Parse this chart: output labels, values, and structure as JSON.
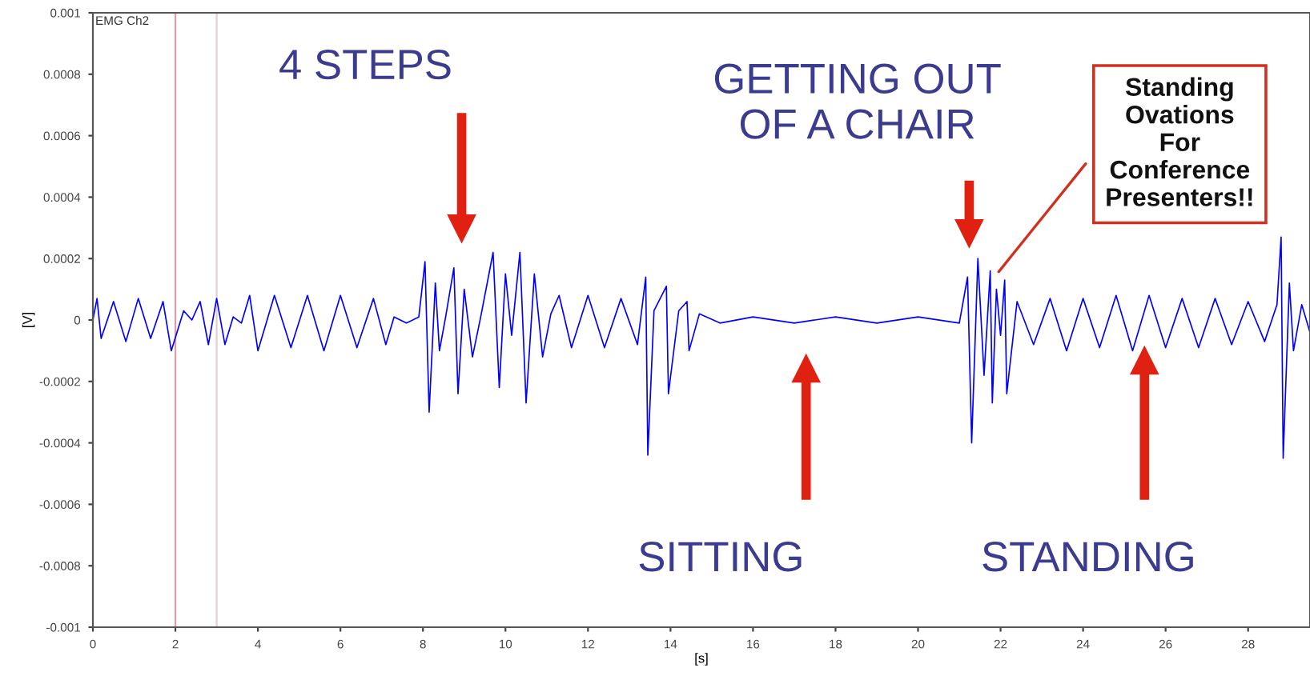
{
  "chart_data": {
    "type": "line",
    "xlabel": "[s]",
    "ylabel": "[V]",
    "xlim": [
      0,
      29.5
    ],
    "ylim": [
      -0.001,
      0.001
    ],
    "xticks": [
      0,
      2,
      4,
      6,
      8,
      10,
      12,
      14,
      16,
      18,
      20,
      22,
      24,
      26,
      28
    ],
    "yticks": [
      -0.001,
      -0.0008,
      -0.0006,
      -0.0004,
      -0.0002,
      0,
      0.0002,
      0.0004,
      0.0006,
      0.0008,
      0.001
    ],
    "grid": false,
    "marker": "none",
    "line_style": "solid",
    "ref_lines": [
      {
        "axis": "x",
        "value": 2,
        "color": "#d9a0a8"
      },
      {
        "axis": "x",
        "value": 3,
        "color": "#ddd0d0"
      }
    ],
    "annotations": [
      "EMG Ch2",
      "4 STEPS",
      "GETTING OUT\nOF A CHAIR",
      "SITTING",
      "STANDING",
      "Standing\nOvations\nFor\nConference\nPresenters!!"
    ],
    "series": [
      {
        "color": "#0000ff",
        "x": [
          0.0,
          0.1,
          0.2,
          0.5,
          0.8,
          1.1,
          1.4,
          1.7,
          1.9,
          2.2,
          2.4,
          2.6,
          2.8,
          3.0,
          3.2,
          3.4,
          3.6,
          3.8,
          4.0,
          4.4,
          4.8,
          5.2,
          5.6,
          6.0,
          6.4,
          6.8,
          7.1,
          7.3,
          7.6,
          7.9,
          8.05,
          8.15,
          8.3,
          8.4,
          8.55,
          8.75,
          8.85,
          9.0,
          9.2,
          9.4,
          9.7,
          9.85,
          10.0,
          10.15,
          10.35,
          10.5,
          10.7,
          10.9,
          11.1,
          11.3,
          11.6,
          12.0,
          12.4,
          12.8,
          13.2,
          13.4,
          13.45,
          13.6,
          13.9,
          13.95,
          14.2,
          14.4,
          14.45,
          14.7,
          15.2,
          16,
          17,
          18,
          19,
          20,
          21.0,
          21.2,
          21.3,
          21.45,
          21.6,
          21.75,
          21.8,
          21.9,
          22.0,
          22.1,
          22.15,
          22.4,
          22.8,
          23.2,
          23.6,
          24.0,
          24.4,
          24.8,
          25.2,
          25.6,
          26.0,
          26.4,
          26.8,
          27.2,
          27.6,
          28.0,
          28.4,
          28.7,
          28.8,
          28.85,
          29.0,
          29.1,
          29.3,
          29.5
        ],
        "values": [
          0,
          7e-05,
          -6e-05,
          6e-05,
          -7e-05,
          7e-05,
          -6e-05,
          6e-05,
          -0.0001,
          3e-05,
          0,
          6e-05,
          -8e-05,
          7e-05,
          -8e-05,
          1e-05,
          -1e-05,
          8e-05,
          -0.0001,
          8e-05,
          -9e-05,
          8e-05,
          -0.0001,
          8e-05,
          -9e-05,
          7e-05,
          -8e-05,
          1e-05,
          -1e-05,
          1e-05,
          0.00019,
          -0.0003,
          0.00012,
          -0.0001,
          1e-05,
          0.00017,
          -0.00024,
          0.0001,
          -0.00012,
          1e-05,
          0.00022,
          -0.00022,
          0.00015,
          -5e-05,
          0.00022,
          -0.00027,
          0.00015,
          -0.00012,
          2e-05,
          8e-05,
          -9e-05,
          8e-05,
          -9e-05,
          7e-05,
          -8e-05,
          0.00014,
          -0.00044,
          3e-05,
          0.00011,
          -0.00024,
          3e-05,
          6e-05,
          -0.0001,
          2e-05,
          -1e-05,
          1e-05,
          -1e-05,
          1e-05,
          -1e-05,
          1e-05,
          -1e-05,
          0.00014,
          -0.0004,
          0.0002,
          -0.00018,
          0.00016,
          -0.00027,
          0.0001,
          -5e-05,
          0.00013,
          -0.00024,
          6e-05,
          -8e-05,
          7e-05,
          -0.0001,
          7e-05,
          -9e-05,
          8e-05,
          -0.0001,
          8e-05,
          -9e-05,
          7e-05,
          -9e-05,
          7e-05,
          -8e-05,
          6e-05,
          -7e-05,
          5e-05,
          0.00027,
          -0.00045,
          0.00012,
          -0.0001,
          5e-05,
          -4e-05
        ]
      }
    ]
  }
}
